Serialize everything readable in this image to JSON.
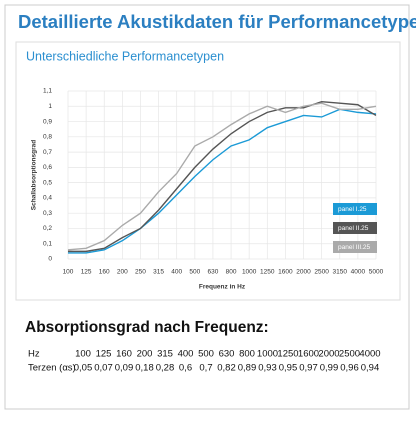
{
  "header": {
    "title": "Detaillierte Akustikdaten für Performancetypen"
  },
  "chart_data": {
    "type": "line",
    "title": "Unterschiedliche Performancetypen",
    "y_label": "Schallabsorptionsgrad",
    "x_label": "Frequenz in Hz",
    "categories": [
      "100",
      "125",
      "160",
      "200",
      "250",
      "315",
      "400",
      "500",
      "630",
      "800",
      "1000",
      "1250",
      "1600",
      "2000",
      "2500",
      "3150",
      "4000",
      "5000"
    ],
    "ylim": [
      0,
      1.1
    ],
    "yticks": [
      0,
      {
        "value": 0.1,
        "label": "0,1"
      },
      {
        "value": 0.2,
        "label": "0,2"
      },
      {
        "value": 0.3,
        "label": "0,3"
      },
      {
        "value": 0.4,
        "label": "0,4"
      },
      {
        "value": 0.5,
        "label": "0,5"
      },
      {
        "value": 0.6,
        "label": "0,6"
      },
      {
        "value": 0.7,
        "label": "0,7"
      },
      {
        "value": 0.8,
        "label": "0,8"
      },
      {
        "value": 0.9,
        "label": "0,9"
      },
      1,
      {
        "value": 1.1,
        "label": "1,1"
      }
    ],
    "grid": true,
    "series": [
      {
        "name": "panel I.25",
        "color": "#1b9ad6",
        "values": [
          0.04,
          0.04,
          0.06,
          0.12,
          0.2,
          0.3,
          0.42,
          0.54,
          0.65,
          0.74,
          0.78,
          0.86,
          0.9,
          0.94,
          0.93,
          0.98,
          0.96,
          0.95
        ]
      },
      {
        "name": "panel II.25",
        "color": "#555555",
        "values": [
          0.05,
          0.05,
          0.07,
          0.14,
          0.2,
          0.32,
          0.46,
          0.6,
          0.72,
          0.82,
          0.9,
          0.96,
          0.99,
          0.99,
          1.03,
          1.02,
          1.01,
          0.94
        ]
      },
      {
        "name": "panel III.25",
        "color": "#aaaaaa",
        "values": [
          0.06,
          0.07,
          0.12,
          0.22,
          0.3,
          0.44,
          0.56,
          0.74,
          0.8,
          0.88,
          0.95,
          1.0,
          0.96,
          1.0,
          1.02,
          0.98,
          0.98,
          1.0
        ]
      }
    ]
  },
  "table": {
    "title": "Absorptionsgrad nach Frequenz:",
    "rows": [
      [
        "Hz",
        "100",
        "125",
        "160",
        "200",
        "315",
        "400",
        "500",
        "630",
        "800",
        "1000",
        "1250",
        "1600",
        "2000",
        "2500",
        "4000"
      ],
      [
        "Terzen (αs)",
        "0,05",
        "0,07",
        "0,09",
        "0,18",
        "0,28",
        "0,6",
        "0,7",
        "0,82",
        "0,89",
        "0,93",
        "0,95",
        "0,97",
        "0,99",
        "0,96",
        "0,94"
      ]
    ]
  }
}
